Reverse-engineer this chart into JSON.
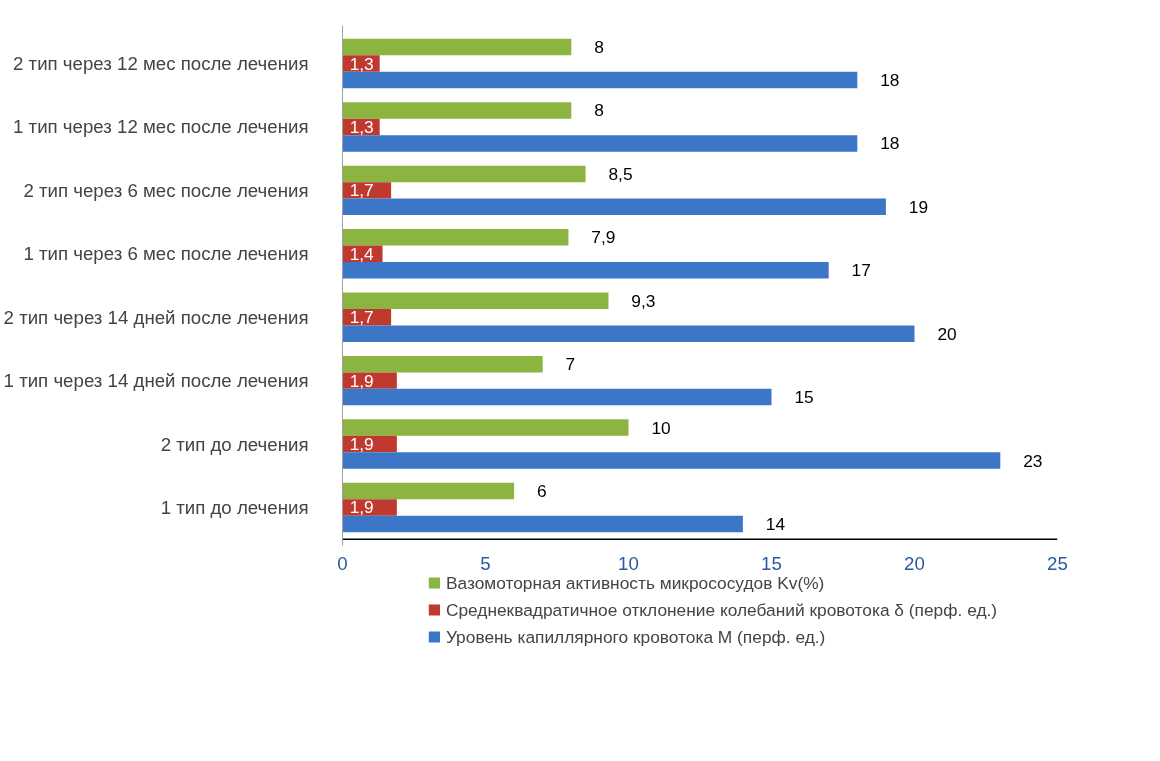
{
  "chart_data": {
    "type": "bar",
    "orientation": "horizontal",
    "categories": [
      "2 тип через 12 мес после лечения",
      "1 тип через 12 мес после лечения",
      "2 тип через 6 мес после лечения",
      "1 тип через 6 мес после лечения",
      "2 тип через 14 дней после лечения",
      "1 тип через 14 дней после лечения",
      "2 тип до лечения",
      "1 тип до лечения"
    ],
    "series": [
      {
        "name": "Вазомоторная активность микрососудов Kv(%)",
        "color": "#8cb441",
        "values": [
          8,
          8,
          8.5,
          7.9,
          9.3,
          7,
          10,
          6
        ],
        "value_labels": [
          "8",
          "8",
          "8,5",
          "7,9",
          "9,3",
          "7",
          "10",
          "6"
        ]
      },
      {
        "name": "Среднеквадратичное отклонение колебаний кровотока δ (перф. ед.)",
        "color": "#c0392f",
        "values": [
          1.3,
          1.3,
          1.7,
          1.4,
          1.7,
          1.9,
          1.9,
          1.9
        ],
        "value_labels": [
          "1,3",
          "1,3",
          "1,7",
          "1,4",
          "1,7",
          "1,9",
          "1,9",
          "1,9"
        ]
      },
      {
        "name": "Уровень капиллярного кровотока M (перф. ед.)",
        "color": "#3b77c6",
        "values": [
          18,
          18,
          19,
          17,
          20,
          15,
          23,
          14
        ],
        "value_labels": [
          "18",
          "18",
          "19",
          "17",
          "20",
          "15",
          "23",
          "14"
        ]
      }
    ],
    "xlim": [
      0,
      25
    ],
    "xticks": [
      0,
      5,
      10,
      15,
      20,
      25
    ],
    "grid": false,
    "legend": "bottom"
  }
}
